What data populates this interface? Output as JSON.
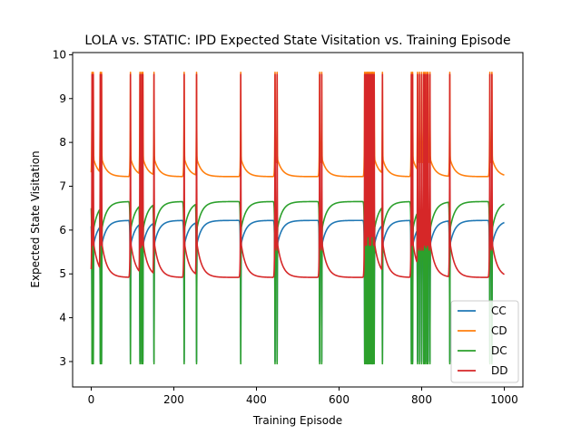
{
  "chart_data": {
    "type": "line",
    "title": "LOLA vs. STATIC: IPD Expected State Visitation vs. Training Episode",
    "xlabel": "Training Episode",
    "ylabel": "Expected State Visitation",
    "xlim": [
      -45,
      1045
    ],
    "ylim": [
      2.42,
      10.05
    ],
    "xticks": [
      0,
      200,
      400,
      600,
      800,
      1000
    ],
    "yticks": [
      3,
      4,
      5,
      6,
      7,
      8,
      9,
      10
    ],
    "legend_position": "lower-right",
    "baselines": {
      "CC": 6.22,
      "CD": 7.22,
      "DC": 6.65,
      "DD": 4.92
    },
    "spike_episodes": [
      2,
      5,
      22,
      25,
      95,
      118,
      122,
      125,
      152,
      225,
      255,
      362,
      445,
      450,
      553,
      558,
      662,
      665,
      668,
      670,
      672,
      675,
      678,
      680,
      682,
      685,
      705,
      775,
      778,
      790,
      795,
      800,
      805,
      808,
      812,
      815,
      820,
      868,
      965,
      970
    ],
    "series": [
      {
        "name": "CC",
        "color": "#1f77b4",
        "baseline": 6.22,
        "peak": 3.0
      },
      {
        "name": "CD",
        "color": "#ff7f0e",
        "baseline": 7.22,
        "peak": 9.6
      },
      {
        "name": "DC",
        "color": "#2ca02c",
        "baseline": 6.65,
        "peak": 2.95
      },
      {
        "name": "DD",
        "color": "#d62728",
        "baseline": 4.92,
        "peak": 9.55
      }
    ]
  }
}
